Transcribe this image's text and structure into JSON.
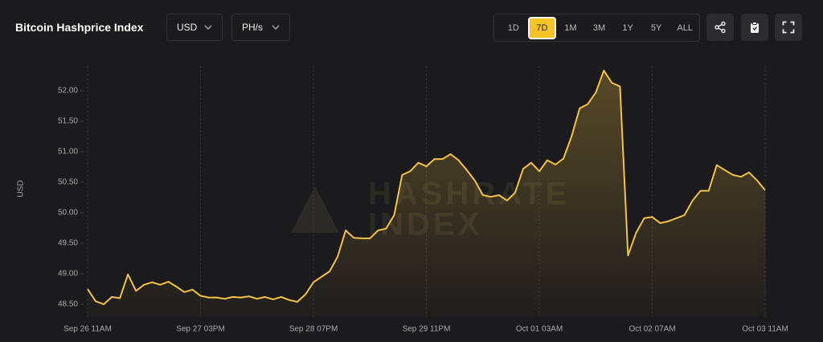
{
  "controls": {
    "currency_select": "USD",
    "unit_select": "PH/s",
    "ranges": [
      "1D",
      "7D",
      "1M",
      "3M",
      "1Y",
      "5Y",
      "ALL"
    ],
    "active_range": "7D"
  },
  "watermark": [
    "HASHRATE",
    "INDEX"
  ],
  "chart_data": {
    "type": "line",
    "title": "Bitcoin Hashprice Index",
    "y_label": "USD",
    "color": "#f5c242",
    "categories": [
      "Sep 26 11AM",
      null,
      null,
      null,
      null,
      null,
      null,
      null,
      null,
      null,
      null,
      null,
      null,
      null,
      "Sep 27 03PM",
      null,
      null,
      null,
      null,
      null,
      null,
      null,
      null,
      null,
      null,
      null,
      null,
      null,
      "Sep 28 07PM",
      null,
      null,
      null,
      null,
      null,
      null,
      null,
      null,
      null,
      null,
      null,
      null,
      null,
      "Sep 29 11PM",
      null,
      null,
      null,
      null,
      null,
      null,
      null,
      null,
      null,
      null,
      null,
      null,
      null,
      "Oct 01 03AM",
      null,
      null,
      null,
      null,
      null,
      null,
      null,
      null,
      null,
      null,
      null,
      null,
      null,
      "Oct 02 07AM",
      null,
      null,
      null,
      null,
      null,
      null,
      null,
      null,
      null,
      null,
      null,
      null,
      null,
      "Oct 03 11AM"
    ],
    "values": [
      48.75,
      48.55,
      48.5,
      48.62,
      48.6,
      48.99,
      48.72,
      48.82,
      48.86,
      48.82,
      48.87,
      48.79,
      48.7,
      48.74,
      48.64,
      48.61,
      48.61,
      48.59,
      48.62,
      48.61,
      48.63,
      48.59,
      48.62,
      48.58,
      48.62,
      48.57,
      48.54,
      48.66,
      48.86,
      48.95,
      49.04,
      49.28,
      49.71,
      49.59,
      49.58,
      49.58,
      49.71,
      49.74,
      49.96,
      50.62,
      50.68,
      50.82,
      50.76,
      50.88,
      50.88,
      50.96,
      50.86,
      50.7,
      50.53,
      50.29,
      50.26,
      50.29,
      50.2,
      50.33,
      50.72,
      50.82,
      50.68,
      50.86,
      50.79,
      50.89,
      51.25,
      51.71,
      51.78,
      51.97,
      52.33,
      52.13,
      52.07,
      49.3,
      49.67,
      49.91,
      49.93,
      49.83,
      49.86,
      49.91,
      49.96,
      50.2,
      50.36,
      50.36,
      50.78,
      50.7,
      50.62,
      50.59,
      50.66,
      50.53,
      50.37
    ],
    "ylim": [
      48.3,
      52.4
    ],
    "yticks": [
      {
        "value": 48.5,
        "label": "48.50"
      },
      {
        "value": 49,
        "label": "49.00"
      },
      {
        "value": 49.5,
        "label": "49.50"
      },
      {
        "value": 50,
        "label": "50.00"
      },
      {
        "value": 50.5,
        "label": "50.50"
      },
      {
        "value": 51,
        "label": "51.00"
      },
      {
        "value": 51.5,
        "label": "51.50"
      },
      {
        "value": 52,
        "label": "52.00"
      }
    ]
  }
}
